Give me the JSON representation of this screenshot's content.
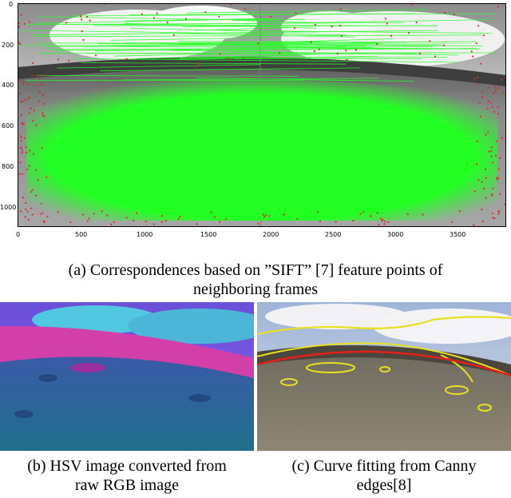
{
  "panel_a": {
    "x_ticks": [
      "0",
      "500",
      "1000",
      "1500",
      "2000",
      "2500",
      "3000",
      "3500"
    ],
    "y_ticks": [
      "200",
      "400",
      "600",
      "800",
      "1000"
    ],
    "y_top_tick": "0",
    "caption_line1": "(a) Correspondences based on ”SIFT” [7] feature points of",
    "caption_line2": "neighboring frames"
  },
  "panel_b": {
    "caption_line1": "(b) HSV image converted from",
    "caption_line2": "raw RGB image"
  },
  "panel_c": {
    "caption_line1": "(c) Curve fitting from Canny",
    "caption_line2": "edges[8]"
  },
  "colors": {
    "match_lines": "#22ff22",
    "keypoints": "#d0302a",
    "curve": "#e0201a",
    "edges": "#e8e020"
  }
}
